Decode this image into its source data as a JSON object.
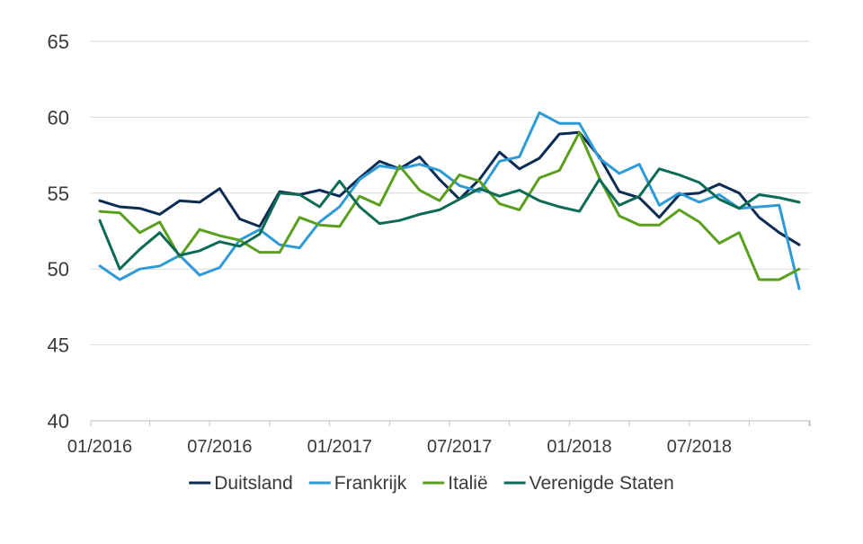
{
  "chart_data": {
    "type": "line",
    "title": "",
    "xlabel": "",
    "ylabel": "",
    "ylim": [
      40,
      65
    ],
    "yticks": [
      40,
      45,
      50,
      55,
      60,
      65
    ],
    "grid": "horizontal",
    "legend_position": "bottom",
    "x_tick_labels": [
      {
        "label": "01/2016",
        "index": 0
      },
      {
        "label": "07/2016",
        "index": 6
      },
      {
        "label": "01/2017",
        "index": 12
      },
      {
        "label": "07/2017",
        "index": 18
      },
      {
        "label": "01/2018",
        "index": 24
      },
      {
        "label": "07/2018",
        "index": 30
      }
    ],
    "categories": [
      "01/2016",
      "02/2016",
      "03/2016",
      "04/2016",
      "05/2016",
      "06/2016",
      "07/2016",
      "08/2016",
      "09/2016",
      "10/2016",
      "11/2016",
      "12/2016",
      "01/2017",
      "02/2017",
      "03/2017",
      "04/2017",
      "05/2017",
      "06/2017",
      "07/2017",
      "08/2017",
      "09/2017",
      "10/2017",
      "11/2017",
      "12/2017",
      "01/2018",
      "02/2018",
      "03/2018",
      "04/2018",
      "05/2018",
      "06/2018",
      "07/2018",
      "08/2018",
      "09/2018",
      "10/2018",
      "11/2018",
      "12/2018"
    ],
    "series": [
      {
        "name": "Duitsland",
        "color": "#0d2c54",
        "values": [
          54.5,
          54.1,
          54.0,
          53.6,
          54.5,
          54.4,
          55.3,
          53.3,
          52.8,
          55.1,
          54.9,
          55.2,
          54.8,
          56.0,
          57.1,
          56.6,
          57.4,
          55.9,
          54.6,
          55.9,
          57.7,
          56.6,
          57.3,
          58.9,
          59.0,
          57.4,
          55.1,
          54.7,
          53.4,
          54.9,
          55.0,
          55.6,
          55.0,
          53.4,
          52.4,
          51.6
        ]
      },
      {
        "name": "Frankrijk",
        "color": "#2e9bd6",
        "values": [
          50.2,
          49.3,
          50.0,
          50.2,
          50.9,
          49.6,
          50.1,
          51.9,
          52.6,
          51.6,
          51.4,
          53.1,
          54.1,
          55.9,
          56.8,
          56.6,
          56.9,
          56.5,
          55.5,
          55.1,
          57.1,
          57.4,
          60.3,
          59.6,
          59.6,
          57.3,
          56.3,
          56.9,
          54.2,
          55.0,
          54.4,
          54.9,
          54.0,
          54.1,
          54.2,
          48.7
        ]
      },
      {
        "name": "Italië",
        "color": "#5aa01e",
        "values": [
          53.8,
          53.7,
          52.4,
          53.1,
          50.8,
          52.6,
          52.2,
          51.9,
          51.1,
          51.1,
          53.4,
          52.9,
          52.8,
          54.8,
          54.2,
          56.8,
          55.2,
          54.5,
          56.2,
          55.8,
          54.3,
          53.9,
          56.0,
          56.5,
          59.0,
          56.0,
          53.5,
          52.9,
          52.9,
          53.9,
          53.1,
          51.7,
          52.4,
          49.3,
          49.3,
          50.0
        ]
      },
      {
        "name": "Verenigde Staten",
        "color": "#0d6b55",
        "values": [
          53.2,
          50.0,
          51.3,
          52.4,
          50.9,
          51.2,
          51.8,
          51.5,
          52.3,
          55.0,
          54.9,
          54.1,
          55.8,
          54.1,
          53.0,
          53.2,
          53.6,
          53.9,
          54.6,
          55.3,
          54.8,
          55.2,
          54.5,
          54.1,
          53.8,
          55.9,
          54.2,
          54.8,
          56.6,
          56.2,
          55.7,
          54.6,
          54.0,
          54.9,
          54.7,
          54.4
        ]
      }
    ]
  }
}
